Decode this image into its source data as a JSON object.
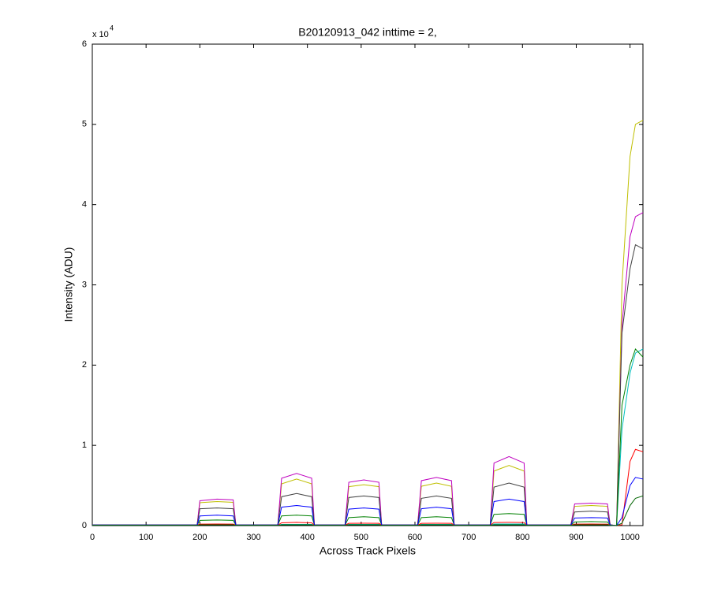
{
  "chart_data": {
    "type": "line",
    "title": "B20120913_042 inttime = 2,",
    "xlabel": "Across Track Pixels",
    "ylabel": "Intensity (ADU)",
    "y_exponent": {
      "base": "x 10",
      "power": "4"
    },
    "xlim": [
      0,
      1024
    ],
    "ylim": [
      0,
      60000
    ],
    "xticks": [
      0,
      100,
      200,
      300,
      400,
      500,
      600,
      700,
      800,
      900,
      1000
    ],
    "yticks": [
      0,
      {
        "value": 10000,
        "label": "1"
      },
      {
        "value": 20000,
        "label": "2"
      },
      {
        "value": 30000,
        "label": "3"
      },
      {
        "value": 40000,
        "label": "4"
      },
      {
        "value": 50000,
        "label": "5"
      },
      {
        "value": 60000,
        "label": "6"
      }
    ],
    "grid": false,
    "x": [
      0,
      195,
      200,
      232,
      262,
      267,
      345,
      352,
      380,
      408,
      413,
      470,
      477,
      505,
      533,
      538,
      605,
      612,
      640,
      668,
      673,
      740,
      747,
      775,
      803,
      808,
      890,
      897,
      928,
      958,
      963,
      975,
      985,
      1000,
      1010,
      1024
    ],
    "series": [
      {
        "color": "#bfbf00",
        "values": [
          100,
          100,
          2850,
          3000,
          2900,
          100,
          100,
          5200,
          5800,
          5200,
          100,
          100,
          4850,
          5100,
          4850,
          100,
          100,
          4900,
          5300,
          4900,
          100,
          100,
          6800,
          7500,
          6800,
          100,
          100,
          2400,
          2500,
          2400,
          100,
          0,
          30000,
          46000,
          50000,
          50500
        ]
      },
      {
        "color": "#bf00bf",
        "values": [
          100,
          100,
          3100,
          3300,
          3200,
          100,
          100,
          5900,
          6500,
          5900,
          100,
          100,
          5400,
          5700,
          5400,
          100,
          100,
          5600,
          6000,
          5600,
          100,
          100,
          7800,
          8600,
          7800,
          100,
          100,
          2700,
          2800,
          2700,
          100,
          0,
          25000,
          36000,
          38500,
          39000
        ]
      },
      {
        "color": "#404040",
        "values": [
          100,
          100,
          2100,
          2200,
          2100,
          100,
          100,
          3600,
          4000,
          3600,
          100,
          100,
          3500,
          3700,
          3500,
          100,
          100,
          3400,
          3700,
          3400,
          100,
          100,
          4800,
          5300,
          4800,
          100,
          100,
          1700,
          1800,
          1700,
          100,
          0,
          24000,
          32000,
          35000,
          34500
        ]
      },
      {
        "color": "#00bfbf",
        "values": [
          50,
          50,
          150,
          150,
          150,
          50,
          50,
          150,
          150,
          150,
          50,
          50,
          150,
          150,
          150,
          50,
          50,
          150,
          150,
          150,
          50,
          50,
          200,
          200,
          200,
          50,
          50,
          150,
          150,
          150,
          50,
          0,
          12000,
          19000,
          21500,
          22000
        ]
      },
      {
        "color": "#008000",
        "values": [
          80,
          80,
          650,
          700,
          650,
          80,
          80,
          1200,
          1300,
          1200,
          80,
          80,
          1000,
          1100,
          1000,
          80,
          80,
          1000,
          1100,
          1000,
          80,
          80,
          1400,
          1500,
          1400,
          80,
          80,
          450,
          500,
          450,
          80,
          0,
          15000,
          20000,
          22000,
          21000
        ]
      },
      {
        "color": "#ff0000",
        "values": [
          60,
          60,
          180,
          200,
          180,
          60,
          60,
          350,
          400,
          350,
          60,
          60,
          280,
          300,
          280,
          60,
          60,
          280,
          300,
          280,
          60,
          60,
          380,
          400,
          380,
          60,
          60,
          180,
          200,
          180,
          60,
          0,
          100,
          8000,
          9500,
          9200
        ]
      },
      {
        "color": "#0000ff",
        "values": [
          80,
          80,
          1200,
          1300,
          1200,
          80,
          80,
          2300,
          2500,
          2300,
          80,
          80,
          2050,
          2200,
          2050,
          80,
          80,
          2100,
          2300,
          2100,
          80,
          80,
          3000,
          3300,
          3000,
          80,
          80,
          950,
          1000,
          950,
          80,
          0,
          1000,
          5000,
          6000,
          5800
        ]
      },
      {
        "color": "#006400",
        "values": [
          40,
          40,
          100,
          100,
          100,
          40,
          40,
          100,
          100,
          100,
          40,
          40,
          100,
          100,
          100,
          40,
          40,
          100,
          100,
          100,
          40,
          40,
          100,
          100,
          100,
          40,
          40,
          100,
          100,
          100,
          40,
          0,
          300,
          2500,
          3400,
          3700
        ]
      }
    ]
  }
}
